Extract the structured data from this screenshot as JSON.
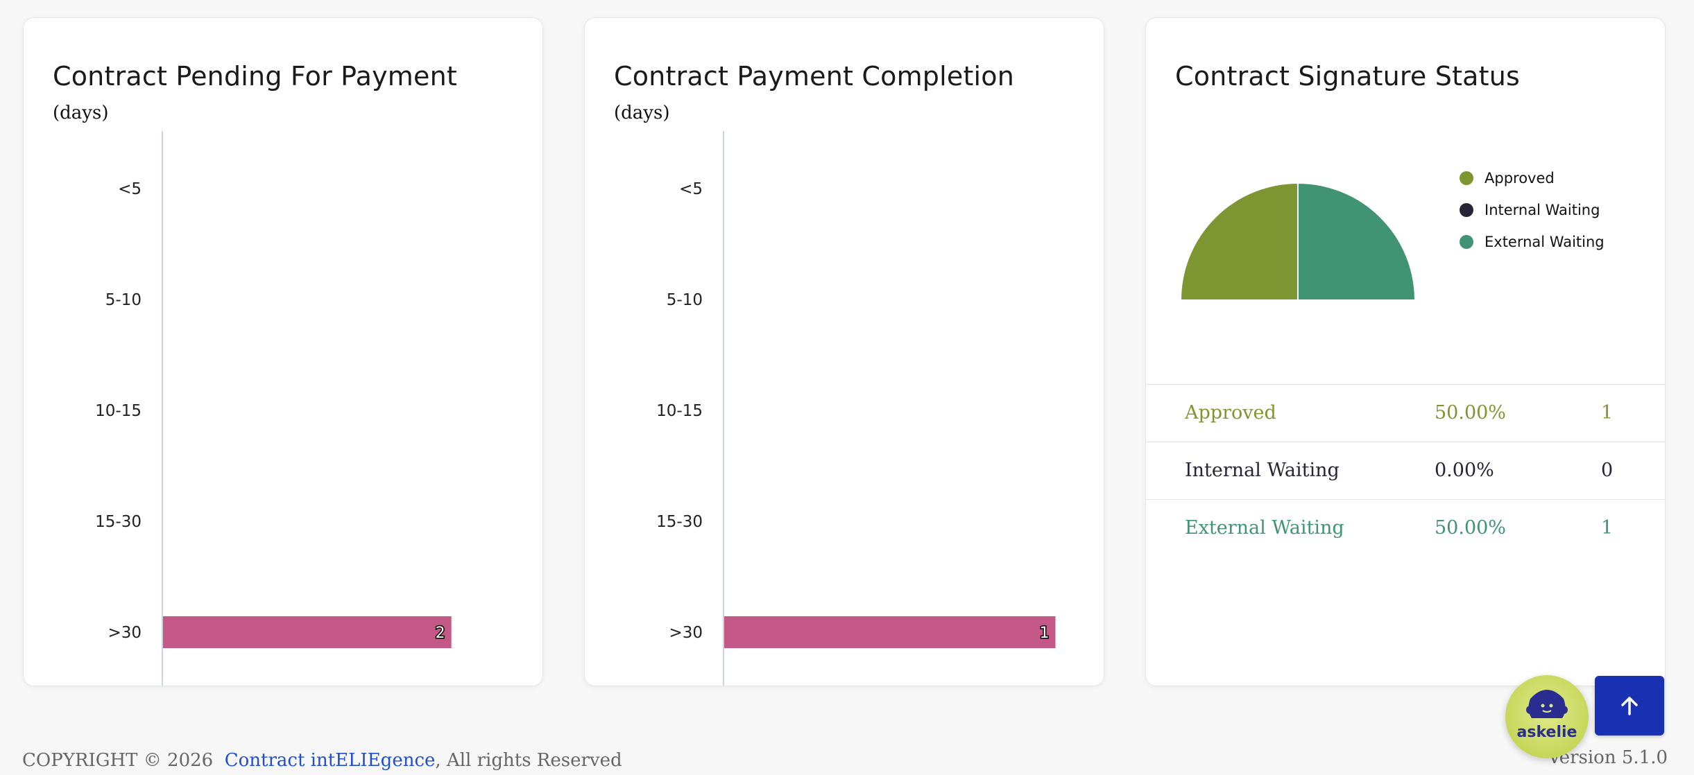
{
  "cards": {
    "pending": {
      "title": "Contract Pending For Payment",
      "subtitle": "(days)"
    },
    "completion": {
      "title": "Contract Payment Completion",
      "subtitle": "(days)"
    },
    "signature": {
      "title": "Contract Signature Status"
    }
  },
  "chart_data": [
    {
      "type": "bar",
      "orientation": "horizontal",
      "title": "Contract Pending For Payment",
      "subtitle": "(days)",
      "categories": [
        "<5",
        "5-10",
        "10-15",
        "15-30",
        ">30"
      ],
      "values": [
        0,
        0,
        0,
        0,
        2
      ],
      "color": "#c45886",
      "xlim": [
        0,
        2.55
      ],
      "grid": false
    },
    {
      "type": "bar",
      "orientation": "horizontal",
      "title": "Contract Payment Completion",
      "subtitle": "(days)",
      "categories": [
        "<5",
        "5-10",
        "10-15",
        "15-30",
        ">30"
      ],
      "values": [
        0,
        0,
        0,
        0,
        1
      ],
      "color": "#c45886",
      "xlim": [
        0,
        1.11
      ],
      "grid": false
    },
    {
      "type": "pie",
      "variant": "half-donut",
      "title": "Contract Signature Status",
      "labels": [
        "Approved",
        "Internal Waiting",
        "External Waiting"
      ],
      "values": [
        1,
        0,
        1
      ],
      "percentages": [
        "50.00%",
        "0.00%",
        "50.00%"
      ],
      "colors": [
        "#7d9632",
        "#282436",
        "#409373"
      ],
      "legend": "right"
    }
  ],
  "signature_table": [
    {
      "label": "Approved",
      "pct": "50.00%",
      "count": "1",
      "color": "#7d9632"
    },
    {
      "label": "Internal Waiting",
      "pct": "0.00%",
      "count": "0",
      "color": "#282436"
    },
    {
      "label": "External Waiting",
      "pct": "50.00%",
      "count": "1",
      "color": "#409373"
    }
  ],
  "footer": {
    "copyright": "COPYRIGHT © 2026",
    "brand": "Contract intELIEgence",
    "rights": ", All rights Reserved",
    "version": "Version 5.1.0"
  },
  "askelie": {
    "label": "askelie"
  },
  "icons": {
    "scroll_top": "arrow-up-icon",
    "assistant": "askelie-avatar-icon"
  }
}
